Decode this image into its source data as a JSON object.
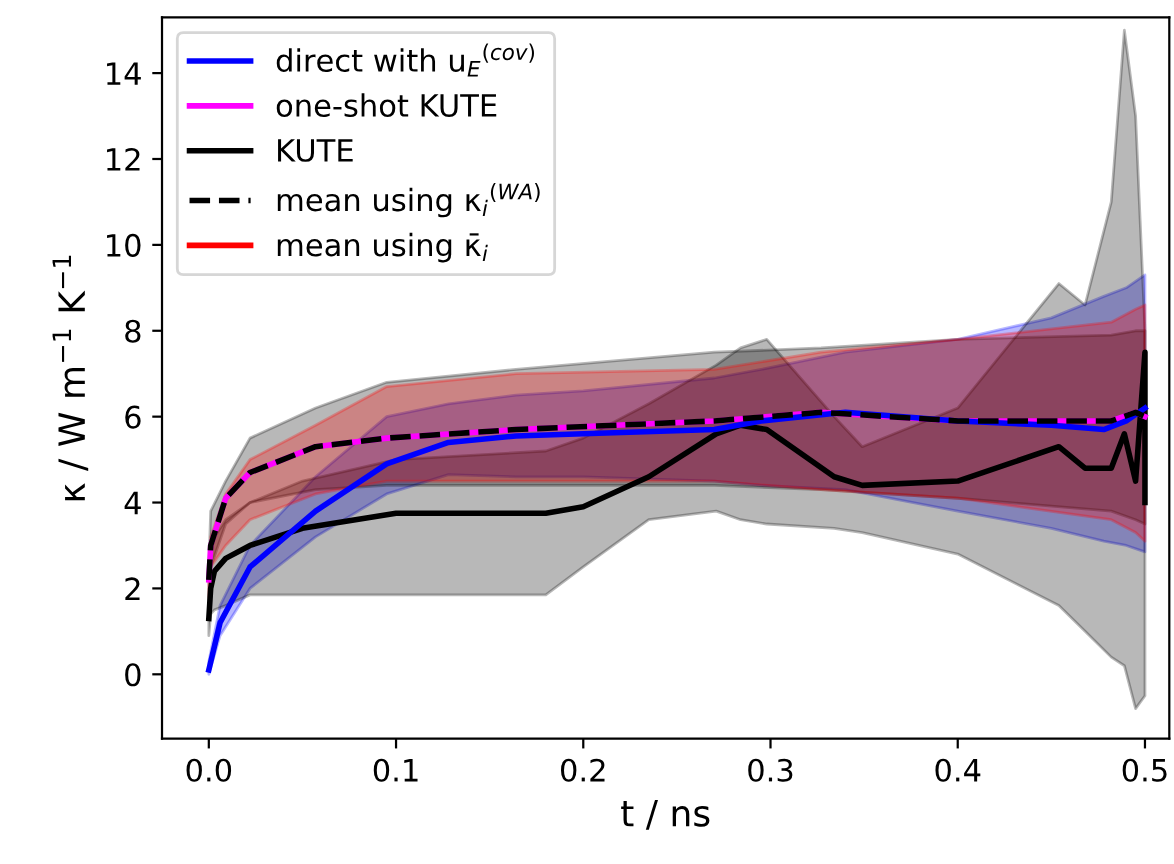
{
  "chart_data": {
    "type": "line",
    "xlabel": "t / ns",
    "ylabel": "κ / W m$^{−1}$ K$^{−1}$",
    "xlim": [
      -0.025,
      0.513
    ],
    "ylim": [
      -1.5,
      15.3
    ],
    "xticks": [
      {
        "value": 0,
        "label": "0.0"
      },
      0.1,
      0.2,
      0.3,
      0.4,
      0.5
    ],
    "yticks": [
      0,
      2,
      4,
      6,
      8,
      10,
      12,
      14
    ],
    "grid": false,
    "legend": "top left",
    "series": [
      {
        "name": "direct with u$_{E}$$^{(cov)}$",
        "color": "#0000ff",
        "x": [
          0,
          0.006,
          0.022,
          0.057,
          0.095,
          0.128,
          0.164,
          0.2,
          0.27,
          0.295,
          0.34,
          0.4,
          0.45,
          0.478,
          0.49,
          0.5
        ],
        "values": [
          0.1,
          1.2,
          2.5,
          3.8,
          4.9,
          5.4,
          5.55,
          5.6,
          5.7,
          5.9,
          6.1,
          5.9,
          5.8,
          5.7,
          5.9,
          6.2
        ],
        "upper": [
          0.3,
          1.6,
          3.0,
          4.6,
          6.0,
          6.3,
          6.5,
          6.6,
          6.9,
          7.1,
          7.5,
          7.8,
          8.3,
          8.8,
          9.0,
          9.3
        ],
        "lower": [
          0,
          0.9,
          2.0,
          3.2,
          4.2,
          4.65,
          4.6,
          4.6,
          4.5,
          4.4,
          4.3,
          3.8,
          3.4,
          3.1,
          3.0,
          2.85
        ]
      },
      {
        "name": "one-shot KUTE",
        "color": "#ff00ff",
        "x": [
          0,
          0.001,
          0.009,
          0.022,
          0.057,
          0.095,
          0.164,
          0.27,
          0.327,
          0.4,
          0.482,
          0.495,
          0.5
        ],
        "values": [
          2.2,
          3.0,
          4.1,
          4.7,
          5.3,
          5.5,
          5.7,
          5.9,
          6.1,
          5.9,
          5.9,
          6.1,
          6.0
        ]
      },
      {
        "name": "KUTE",
        "color": "#000000",
        "x": [
          0,
          0.001,
          0.003,
          0.009,
          0.022,
          0.05,
          0.1,
          0.18,
          0.2,
          0.235,
          0.271,
          0.284,
          0.298,
          0.334,
          0.349,
          0.4,
          0.454,
          0.468,
          0.482,
          0.489,
          0.495,
          0.5,
          0.5
        ],
        "values": [
          1.3,
          2.0,
          2.4,
          2.7,
          3.0,
          3.4,
          3.75,
          3.75,
          3.9,
          4.6,
          5.6,
          5.8,
          5.7,
          4.6,
          4.4,
          4.5,
          5.3,
          4.8,
          4.8,
          5.6,
          4.5,
          7.5,
          4.0
        ],
        "upper": [
          1.6,
          2.8,
          3.2,
          3.6,
          4.0,
          4.5,
          5.0,
          5.2,
          5.5,
          6.3,
          7.2,
          7.6,
          7.8,
          6.0,
          5.3,
          6.2,
          9.1,
          8.6,
          11.0,
          15.0,
          13.0,
          8.0,
          8.0
        ],
        "lower": [
          0.9,
          1.4,
          1.5,
          1.6,
          1.85,
          1.85,
          1.85,
          1.85,
          2.5,
          3.6,
          3.8,
          3.6,
          3.5,
          3.4,
          3.3,
          2.8,
          1.6,
          1.0,
          0.4,
          0.2,
          -0.8,
          -0.5,
          -0.5
        ]
      },
      {
        "name": "mean using κ$_{i}$$^{(WA)}$",
        "color": "#000000",
        "line_style": "dashed",
        "x": [
          0,
          0.001,
          0.009,
          0.022,
          0.057,
          0.095,
          0.164,
          0.27,
          0.327,
          0.4,
          0.482,
          0.495,
          0.5
        ],
        "values": [
          2.2,
          3.0,
          4.1,
          4.7,
          5.3,
          5.5,
          5.7,
          5.9,
          6.1,
          5.9,
          5.9,
          6.1,
          6.0
        ],
        "upper": [
          2.5,
          3.8,
          4.5,
          5.5,
          6.2,
          6.8,
          7.1,
          7.5,
          7.6,
          7.8,
          7.9,
          8.0,
          8.0
        ],
        "lower": [
          1.6,
          2.5,
          3.5,
          4.0,
          4.3,
          4.4,
          4.4,
          4.4,
          4.3,
          4.1,
          3.8,
          3.6,
          3.5
        ]
      },
      {
        "name": "mean using κ̄$_{i}$",
        "color": "#ff0000",
        "x": [
          0,
          0.001,
          0.009,
          0.022,
          0.057,
          0.095,
          0.164,
          0.27,
          0.327,
          0.4,
          0.482,
          0.495,
          0.5
        ],
        "values": [
          null,
          null,
          null,
          null,
          null,
          null,
          null,
          null,
          null,
          null,
          null,
          null,
          null
        ],
        "upper": [
          2.3,
          3.2,
          4.2,
          5.0,
          5.8,
          6.7,
          7.0,
          7.1,
          7.5,
          7.8,
          8.2,
          8.5,
          8.6
        ],
        "lower": [
          1.8,
          2.5,
          3.0,
          3.6,
          4.2,
          4.5,
          4.5,
          4.5,
          4.3,
          4.1,
          3.6,
          3.3,
          3.1
        ]
      }
    ]
  }
}
